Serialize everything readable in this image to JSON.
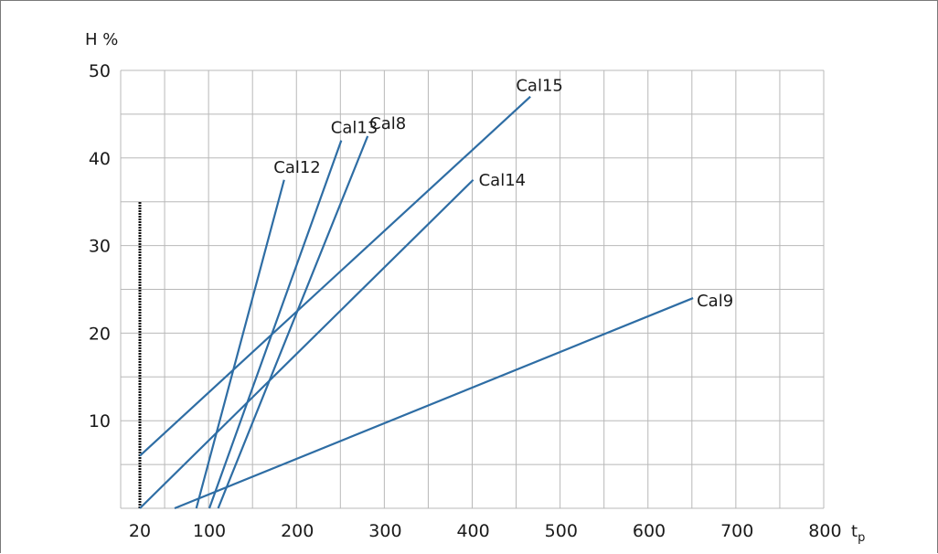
{
  "chart_data": {
    "type": "line",
    "title": "",
    "ylabel": "H %",
    "xlabel": "t",
    "xlabel_sub": "p",
    "xlim": [
      20,
      800
    ],
    "ylim": [
      0,
      50
    ],
    "xticks": [
      20,
      100,
      200,
      300,
      400,
      500,
      600,
      700,
      800
    ],
    "yticks": [
      10,
      20,
      30,
      40,
      50
    ],
    "grid": true,
    "line_color": "#2e6da4",
    "marker_line": {
      "x": 20,
      "y_range": [
        0,
        35
      ]
    },
    "series": [
      {
        "name": "Cal12",
        "x": [
          85,
          185
        ],
        "y": [
          0,
          37.5
        ]
      },
      {
        "name": "Cal13",
        "x": [
          100,
          250
        ],
        "y": [
          0,
          42
        ]
      },
      {
        "name": "Cal8",
        "x": [
          110,
          280
        ],
        "y": [
          0,
          42.5
        ]
      },
      {
        "name": "Cal15",
        "x": [
          20,
          465
        ],
        "y": [
          6,
          47
        ]
      },
      {
        "name": "Cal14",
        "x": [
          20,
          400
        ],
        "y": [
          0,
          37.5
        ]
      },
      {
        "name": "Cal9",
        "x": [
          60,
          650
        ],
        "y": [
          0,
          24
        ]
      }
    ]
  }
}
